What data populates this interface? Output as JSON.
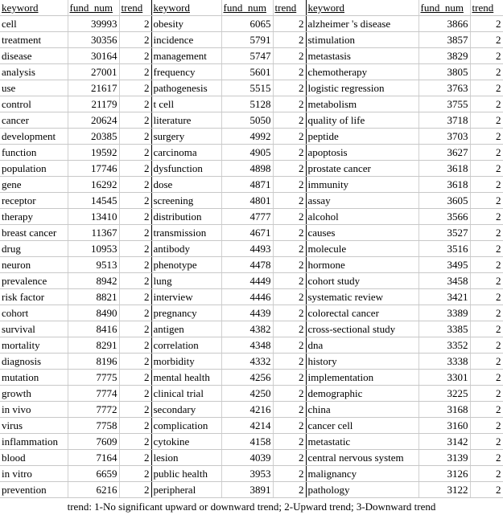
{
  "headers": [
    "keyword",
    "fund_num",
    "trend"
  ],
  "rows": [
    [
      [
        "cell",
        "39993",
        "2"
      ],
      [
        "obesity",
        "6065",
        "2"
      ],
      [
        "alzheimer 's disease",
        "3866",
        "2"
      ]
    ],
    [
      [
        "treatment",
        "30356",
        "2"
      ],
      [
        "incidence",
        "5791",
        "2"
      ],
      [
        "stimulation",
        "3857",
        "2"
      ]
    ],
    [
      [
        "disease",
        "30164",
        "2"
      ],
      [
        "management",
        "5747",
        "2"
      ],
      [
        "metastasis",
        "3829",
        "2"
      ]
    ],
    [
      [
        "analysis",
        "27001",
        "2"
      ],
      [
        "frequency",
        "5601",
        "2"
      ],
      [
        "chemotherapy",
        "3805",
        "2"
      ]
    ],
    [
      [
        "use",
        "21617",
        "2"
      ],
      [
        "pathogenesis",
        "5515",
        "2"
      ],
      [
        "logistic regression",
        "3763",
        "2"
      ]
    ],
    [
      [
        "control",
        "21179",
        "2"
      ],
      [
        "t cell",
        "5128",
        "2"
      ],
      [
        "metabolism",
        "3755",
        "2"
      ]
    ],
    [
      [
        "cancer",
        "20624",
        "2"
      ],
      [
        "literature",
        "5050",
        "2"
      ],
      [
        "quality of life",
        "3718",
        "2"
      ]
    ],
    [
      [
        "development",
        "20385",
        "2"
      ],
      [
        "surgery",
        "4992",
        "2"
      ],
      [
        "peptide",
        "3703",
        "2"
      ]
    ],
    [
      [
        "function",
        "19592",
        "2"
      ],
      [
        "carcinoma",
        "4905",
        "2"
      ],
      [
        "apoptosis",
        "3627",
        "2"
      ]
    ],
    [
      [
        "population",
        "17746",
        "2"
      ],
      [
        "dysfunction",
        "4898",
        "2"
      ],
      [
        "prostate cancer",
        "3618",
        "2"
      ]
    ],
    [
      [
        "gene",
        "16292",
        "2"
      ],
      [
        "dose",
        "4871",
        "2"
      ],
      [
        "immunity",
        "3618",
        "2"
      ]
    ],
    [
      [
        "receptor",
        "14545",
        "2"
      ],
      [
        "screening",
        "4801",
        "2"
      ],
      [
        "assay",
        "3605",
        "2"
      ]
    ],
    [
      [
        "therapy",
        "13410",
        "2"
      ],
      [
        "distribution",
        "4777",
        "2"
      ],
      [
        "alcohol",
        "3566",
        "2"
      ]
    ],
    [
      [
        "breast cancer",
        "11367",
        "2"
      ],
      [
        "transmission",
        "4671",
        "2"
      ],
      [
        "causes",
        "3527",
        "2"
      ]
    ],
    [
      [
        "drug",
        "10953",
        "2"
      ],
      [
        "antibody",
        "4493",
        "2"
      ],
      [
        "molecule",
        "3516",
        "2"
      ]
    ],
    [
      [
        "neuron",
        "9513",
        "2"
      ],
      [
        "phenotype",
        "4478",
        "2"
      ],
      [
        "hormone",
        "3495",
        "2"
      ]
    ],
    [
      [
        "prevalence",
        "8942",
        "2"
      ],
      [
        "lung",
        "4449",
        "2"
      ],
      [
        "cohort study",
        "3458",
        "2"
      ]
    ],
    [
      [
        "risk factor",
        "8821",
        "2"
      ],
      [
        "interview",
        "4446",
        "2"
      ],
      [
        "systematic review",
        "3421",
        "2"
      ]
    ],
    [
      [
        "cohort",
        "8490",
        "2"
      ],
      [
        "pregnancy",
        "4439",
        "2"
      ],
      [
        "colorectal cancer",
        "3389",
        "2"
      ]
    ],
    [
      [
        "survival",
        "8416",
        "2"
      ],
      [
        "antigen",
        "4382",
        "2"
      ],
      [
        "cross-sectional study",
        "3385",
        "2"
      ]
    ],
    [
      [
        "mortality",
        "8291",
        "2"
      ],
      [
        "correlation",
        "4348",
        "2"
      ],
      [
        "dna",
        "3352",
        "2"
      ]
    ],
    [
      [
        "diagnosis",
        "8196",
        "2"
      ],
      [
        "morbidity",
        "4332",
        "2"
      ],
      [
        "history",
        "3338",
        "2"
      ]
    ],
    [
      [
        "mutation",
        "7775",
        "2"
      ],
      [
        "mental health",
        "4256",
        "2"
      ],
      [
        "implementation",
        "3301",
        "2"
      ]
    ],
    [
      [
        "growth",
        "7774",
        "2"
      ],
      [
        "clinical trial",
        "4250",
        "2"
      ],
      [
        "demographic",
        "3225",
        "2"
      ]
    ],
    [
      [
        "in vivo",
        "7772",
        "2"
      ],
      [
        "secondary",
        "4216",
        "2"
      ],
      [
        "china",
        "3168",
        "2"
      ]
    ],
    [
      [
        "virus",
        "7758",
        "2"
      ],
      [
        "complication",
        "4214",
        "2"
      ],
      [
        "cancer cell",
        "3160",
        "2"
      ]
    ],
    [
      [
        "inflammation",
        "7609",
        "2"
      ],
      [
        "cytokine",
        "4158",
        "2"
      ],
      [
        "metastatic",
        "3142",
        "2"
      ]
    ],
    [
      [
        "blood",
        "7164",
        "2"
      ],
      [
        "lesion",
        "4039",
        "2"
      ],
      [
        "central nervous system",
        "3139",
        "2"
      ]
    ],
    [
      [
        "in vitro",
        "6659",
        "2"
      ],
      [
        "public health",
        "3953",
        "2"
      ],
      [
        "malignancy",
        "3126",
        "2"
      ]
    ],
    [
      [
        "prevention",
        "6216",
        "2"
      ],
      [
        "peripheral",
        "3891",
        "2"
      ],
      [
        "pathology",
        "3122",
        "2"
      ]
    ]
  ],
  "footer": "trend: 1-No significant upward or downward trend; 2-Upward trend; 3-Downward trend"
}
